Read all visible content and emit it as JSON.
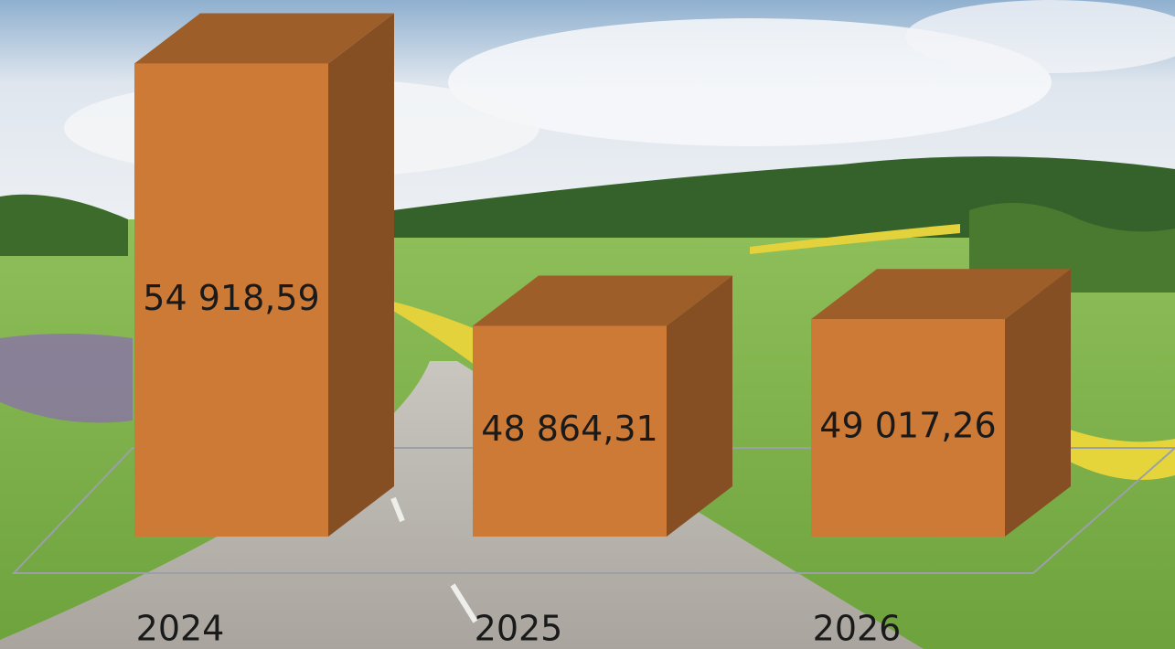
{
  "chart_data": {
    "type": "bar3d",
    "categories": [
      "2024",
      "2025",
      "2026"
    ],
    "values": [
      54918.59,
      48864.31,
      49017.26
    ],
    "value_labels": [
      "54 918,59",
      "48 864,31",
      "49 017,26"
    ],
    "color": "#cd7a36",
    "ylim": [
      44000,
      55500
    ]
  }
}
